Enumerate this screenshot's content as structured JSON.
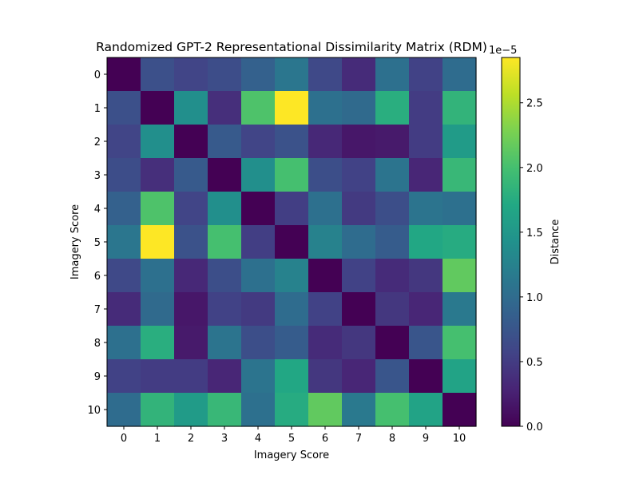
{
  "chart_data": {
    "type": "heatmap",
    "title": "Randomized GPT-2 Representational Dissimilarity Matrix (RDM)",
    "xlabel": "Imagery Score",
    "ylabel": "Imagery Score",
    "x_categories": [
      "0",
      "1",
      "2",
      "3",
      "4",
      "5",
      "6",
      "7",
      "8",
      "9",
      "10"
    ],
    "y_categories": [
      "0",
      "1",
      "2",
      "3",
      "4",
      "5",
      "6",
      "7",
      "8",
      "9",
      "10"
    ],
    "values": [
      [
        0.0,
        0.7,
        0.58,
        0.66,
        0.88,
        1.12,
        0.62,
        0.35,
        1.05,
        0.55,
        1.0
      ],
      [
        0.7,
        0.0,
        1.4,
        0.38,
        2.05,
        2.85,
        1.05,
        0.98,
        1.78,
        0.5,
        1.85
      ],
      [
        0.58,
        1.4,
        0.0,
        0.8,
        0.58,
        0.72,
        0.32,
        0.18,
        0.2,
        0.5,
        1.55
      ],
      [
        0.66,
        0.38,
        0.8,
        0.0,
        1.4,
        2.0,
        0.68,
        0.55,
        1.1,
        0.3,
        1.9
      ],
      [
        0.88,
        2.05,
        0.58,
        1.4,
        0.0,
        0.52,
        1.05,
        0.48,
        0.68,
        1.1,
        1.05
      ],
      [
        1.12,
        2.85,
        0.72,
        2.0,
        0.52,
        0.0,
        1.25,
        1.0,
        0.82,
        1.7,
        1.75
      ],
      [
        0.62,
        1.05,
        0.32,
        0.68,
        1.05,
        1.25,
        0.0,
        0.55,
        0.35,
        0.45,
        2.15
      ],
      [
        0.35,
        0.98,
        0.18,
        0.55,
        0.48,
        1.0,
        0.55,
        0.0,
        0.45,
        0.3,
        1.15
      ],
      [
        1.05,
        1.78,
        0.2,
        1.1,
        0.68,
        0.82,
        0.35,
        0.45,
        0.0,
        0.75,
        2.0
      ],
      [
        0.55,
        0.5,
        0.5,
        0.3,
        1.1,
        1.7,
        0.45,
        0.3,
        0.75,
        0.0,
        1.65
      ],
      [
        1.0,
        1.85,
        1.55,
        1.9,
        1.05,
        1.75,
        2.15,
        1.15,
        2.0,
        1.65,
        0.0
      ]
    ],
    "value_scale": "1e-5",
    "colormap": "viridis",
    "vmin": 0.0,
    "vmax": 2.85,
    "colorbar": {
      "label": "Distance",
      "ticks": [
        "0.0",
        "0.5",
        "1.0",
        "1.5",
        "2.0",
        "2.5"
      ],
      "tick_values": [
        0.0,
        0.5,
        1.0,
        1.5,
        2.0,
        2.5
      ],
      "exponent_label": "1e−5"
    },
    "grid": false
  }
}
